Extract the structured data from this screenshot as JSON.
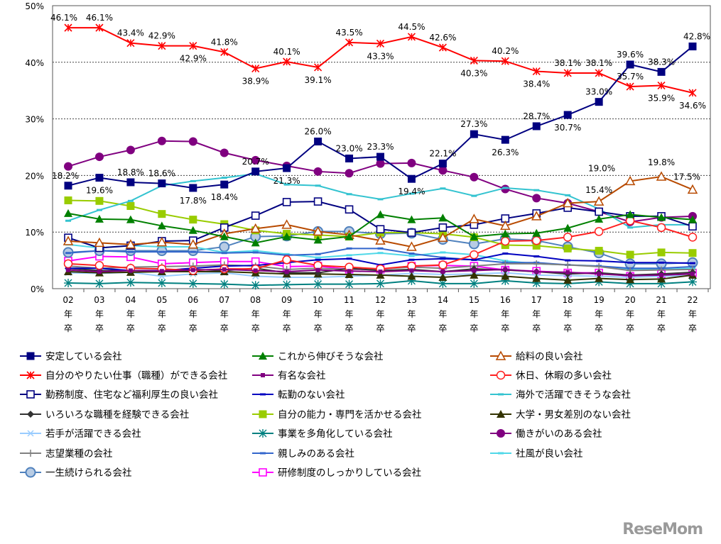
{
  "chart_data": {
    "type": "line",
    "title": "",
    "xlabel": "",
    "ylabel": "",
    "ylim": [
      0,
      50
    ],
    "yticks": [
      "0%",
      "10%",
      "20%",
      "30%",
      "40%",
      "50%"
    ],
    "x": [
      "02",
      "03",
      "04",
      "05",
      "06",
      "07",
      "08",
      "09",
      "10",
      "11",
      "12",
      "13",
      "14",
      "15",
      "16",
      "17",
      "18",
      "19",
      "20",
      "21",
      "22"
    ],
    "x_suffix": [
      "年",
      "卒"
    ],
    "grid": "horizontal dashed at 10% steps",
    "legend": "bottom, 3 columns",
    "series": [
      {
        "name": "安定している会社",
        "color": "#000080",
        "marker": "square",
        "labeled": true,
        "values": [
          18.2,
          19.6,
          18.8,
          18.6,
          17.8,
          18.4,
          20.7,
          21.3,
          26.0,
          23.0,
          23.3,
          19.4,
          22.1,
          27.3,
          26.3,
          28.7,
          30.7,
          33.0,
          39.6,
          38.3,
          42.8
        ]
      },
      {
        "name": "これから伸びそうな会社",
        "color": "#008000",
        "marker": "triangle",
        "values": [
          13.3,
          12.3,
          12.2,
          11.1,
          10.3,
          9.2,
          8.1,
          9.2,
          8.6,
          9.2,
          13.1,
          12.2,
          12.5,
          9.2,
          9.7,
          9.8,
          10.7,
          12.3,
          13.1,
          12.6,
          12.2
        ]
      },
      {
        "name": "給料の良い会社",
        "color": "#b84a00",
        "marker": "triangle-open",
        "values": [
          8.4,
          8.1,
          7.8,
          8.2,
          7.8,
          9.7,
          10.6,
          11.3,
          10.1,
          9.5,
          8.5,
          7.4,
          9.0,
          12.3,
          11.1,
          12.8,
          15.1,
          15.4,
          19.0,
          19.8,
          17.5
        ],
        "labels": {
          "17": "15.4%",
          "18": "19.0%",
          "19": "19.8%",
          "20": "17.5%"
        }
      },
      {
        "name": "自分のやりたい仕事（職種）ができる会社",
        "color": "#ff0000",
        "marker": "star",
        "labeled": true,
        "values": [
          46.1,
          46.1,
          43.4,
          42.9,
          42.9,
          41.8,
          38.9,
          40.1,
          39.1,
          43.5,
          43.3,
          44.5,
          42.6,
          40.3,
          40.2,
          38.4,
          38.1,
          38.1,
          35.7,
          35.9,
          34.6
        ]
      },
      {
        "name": "有名な会社",
        "color": "#800080",
        "marker": "small-square",
        "values": [
          3.3,
          3.0,
          3.2,
          3.1,
          3.3,
          3.4,
          3.2,
          3.0,
          3.3,
          3.1,
          3.0,
          3.2,
          3.0,
          3.2,
          3.4,
          3.0,
          2.9,
          2.6,
          2.3,
          2.4,
          2.6
        ]
      },
      {
        "name": "休日、休暇の多い会社",
        "color": "#ff2020",
        "marker": "circle-open",
        "values": [
          4.4,
          4.1,
          3.6,
          3.5,
          3.2,
          3.5,
          3.5,
          5.1,
          4.1,
          3.8,
          3.5,
          4.0,
          4.2,
          6.0,
          8.4,
          8.5,
          9.1,
          10.1,
          12.0,
          10.8,
          9.1
        ]
      },
      {
        "name": "勤務制度、住宅など福利厚生の良い会社",
        "color": "#000080",
        "marker": "square-open",
        "values": [
          9.0,
          7.2,
          7.6,
          8.4,
          8.5,
          10.8,
          12.9,
          15.3,
          15.4,
          14.0,
          10.5,
          9.9,
          10.8,
          11.3,
          12.4,
          13.3,
          14.3,
          13.6,
          12.8,
          12.8,
          11.0
        ]
      },
      {
        "name": "転勤のない会社",
        "color": "#0000c0",
        "marker": "dash",
        "values": [
          3.6,
          3.6,
          3.2,
          3.2,
          3.6,
          4.0,
          4.1,
          4.6,
          5.1,
          5.3,
          4.2,
          5.1,
          5.3,
          5.1,
          6.2,
          5.7,
          5.0,
          4.9,
          4.6,
          4.6,
          4.5
        ]
      },
      {
        "name": "海外で活躍できそうな会社",
        "color": "#33c3d0",
        "marker": "dash",
        "values": [
          12.0,
          13.9,
          15.5,
          18.2,
          19.0,
          19.6,
          20.3,
          18.4,
          18.2,
          16.7,
          15.8,
          16.8,
          17.7,
          16.4,
          17.8,
          17.4,
          16.5,
          14.1,
          10.8,
          11.3,
          11.3
        ]
      },
      {
        "name": "いろいろな職種を経験できる会社",
        "color": "#333333",
        "marker": "diamond",
        "values": [
          3.6,
          3.2,
          3.2,
          3.2,
          3.4,
          3.2,
          3.6,
          2.8,
          2.8,
          3.6,
          3.2,
          3.4,
          3.0,
          3.5,
          3.3,
          3.0,
          2.6,
          2.8,
          2.4,
          2.6,
          2.9
        ]
      },
      {
        "name": "自分の能力・専門を活かせる会社",
        "color": "#99cc00",
        "marker": "square",
        "values": [
          15.6,
          15.5,
          14.6,
          13.2,
          12.2,
          11.4,
          10.3,
          9.7,
          9.5,
          9.2,
          9.9,
          9.9,
          9.7,
          9.1,
          7.7,
          7.6,
          7.1,
          6.7,
          6.0,
          6.4,
          6.3
        ]
      },
      {
        "name": "大学・男女差別のない会社",
        "color": "#333300",
        "marker": "triangle",
        "values": [
          3.0,
          2.8,
          2.9,
          3.0,
          3.0,
          3.0,
          2.8,
          2.6,
          2.6,
          2.5,
          2.4,
          2.2,
          2.0,
          2.4,
          2.2,
          1.8,
          1.5,
          1.8,
          1.6,
          1.7,
          2.4
        ]
      },
      {
        "name": "若手が活躍できる会社",
        "color": "#99ccff",
        "marker": "x",
        "values": [
          2.8,
          2.7,
          2.9,
          2.2,
          2.6,
          2.8,
          2.2,
          2.0,
          2.0,
          2.2,
          2.4,
          2.7,
          2.5,
          2.6,
          2.8,
          2.4,
          2.3,
          2.2,
          2.0,
          2.2,
          2.3
        ]
      },
      {
        "name": "事業を多角化している会社",
        "color": "#008080",
        "marker": "asterisk",
        "values": [
          1.0,
          0.9,
          1.1,
          1.0,
          0.9,
          0.8,
          0.6,
          0.7,
          0.8,
          0.8,
          0.9,
          1.4,
          0.9,
          0.9,
          1.4,
          1.0,
          0.9,
          1.2,
          0.9,
          0.9,
          1.2
        ]
      },
      {
        "name": "働きがいのある会社",
        "color": "#800080",
        "marker": "circle",
        "values": [
          21.6,
          23.3,
          24.5,
          26.1,
          26.0,
          24.0,
          22.7,
          21.7,
          20.7,
          20.4,
          22.1,
          22.2,
          20.9,
          19.7,
          17.6,
          16.0,
          15.1,
          13.6,
          11.8,
          12.6,
          12.8
        ]
      },
      {
        "name": "志望業種の会社",
        "color": "#808080",
        "marker": "plus",
        "values": [
          4.0,
          3.6,
          3.8,
          3.9,
          4.0,
          4.2,
          4.0,
          3.4,
          3.6,
          3.4,
          3.5,
          3.8,
          3.6,
          4.0,
          4.4,
          4.4,
          4.2,
          3.9,
          3.2,
          3.3,
          3.4
        ]
      },
      {
        "name": "親しみのある会社",
        "color": "#3366cc",
        "marker": "dash",
        "values": [
          6.3,
          6.7,
          6.5,
          6.5,
          6.5,
          6.3,
          6.4,
          5.9,
          6.1,
          7.1,
          7.1,
          6.2,
          5.5,
          5.1,
          4.6,
          4.6,
          4.2,
          4.0,
          3.6,
          3.6,
          3.9
        ]
      },
      {
        "name": "社風が良い会社",
        "color": "#4fd8e8",
        "marker": "dash",
        "values": [
          7.8,
          7.2,
          7.6,
          7.4,
          7.4,
          6.4,
          6.7,
          6.1,
          5.5,
          5.9,
          6.3,
          5.8,
          6.4,
          6.0,
          4.9,
          4.4,
          4.2,
          4.0,
          3.4,
          3.4,
          3.6
        ]
      },
      {
        "name": "一生続けられる会社",
        "color": "#4f81bd",
        "marker": "circle-pattern",
        "values": [
          6.4,
          6.7,
          6.7,
          6.7,
          6.7,
          7.4,
          9.2,
          9.3,
          10.1,
          10.1,
          9.7,
          9.8,
          8.7,
          7.9,
          8.8,
          8.5,
          7.4,
          6.3,
          4.4,
          4.4,
          4.6
        ]
      },
      {
        "name": "研修制度のしっかりしている会社",
        "color": "#ff00ff",
        "marker": "square-open",
        "values": [
          4.9,
          5.7,
          5.6,
          4.4,
          4.6,
          4.8,
          4.8,
          3.9,
          4.0,
          3.4,
          3.4,
          4.0,
          4.1,
          4.0,
          3.3,
          3.1,
          2.8,
          2.8,
          2.2,
          2.6,
          2.8
        ]
      }
    ]
  },
  "watermark": "ReseMom"
}
